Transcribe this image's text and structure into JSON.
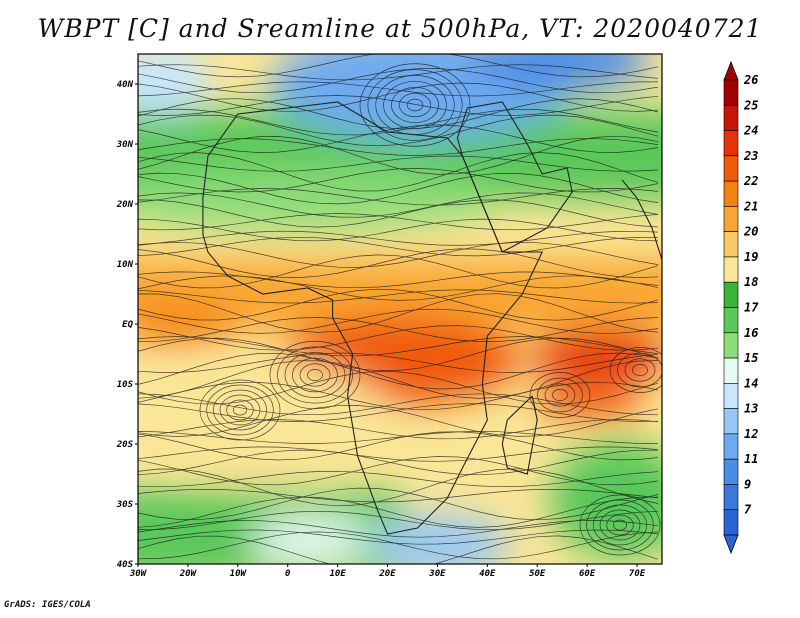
{
  "title": "WBPT [C] and Sreamline at 500hPa, VT: 2020040721",
  "credit": "GrADS: IGES/COLA",
  "map": {
    "lat_labels": [
      "40N",
      "30N",
      "20N",
      "10N",
      "EQ",
      "10S",
      "20S",
      "30S",
      "40S"
    ],
    "lat_values": [
      40,
      30,
      20,
      10,
      0,
      -10,
      -20,
      -30,
      -40
    ],
    "lon_labels": [
      "30W",
      "20W",
      "10W",
      "0",
      "10E",
      "20E",
      "30E",
      "40E",
      "50E",
      "60E",
      "70E"
    ],
    "lon_values": [
      -30,
      -20,
      -10,
      0,
      10,
      20,
      30,
      40,
      50,
      60,
      70
    ],
    "lon_range": [
      -30,
      75
    ],
    "lat_range": [
      -40,
      45
    ]
  },
  "colorbar": {
    "labels": [
      "26",
      "25",
      "24",
      "23",
      "22",
      "21",
      "20",
      "19",
      "18",
      "17",
      "16",
      "15",
      "14",
      "13",
      "12",
      "11",
      "9",
      "7"
    ],
    "colors": [
      "#a50000",
      "#c8140a",
      "#e6320a",
      "#f05a0a",
      "#f5820f",
      "#faa532",
      "#fac864",
      "#fae696",
      "#3cb43c",
      "#5ac85a",
      "#8cdc78",
      "#e6faf0",
      "#c8e6ff",
      "#96c8f5",
      "#6eaaf0",
      "#4b8ce6",
      "#3c78dc",
      "#2a64d2"
    ]
  }
}
